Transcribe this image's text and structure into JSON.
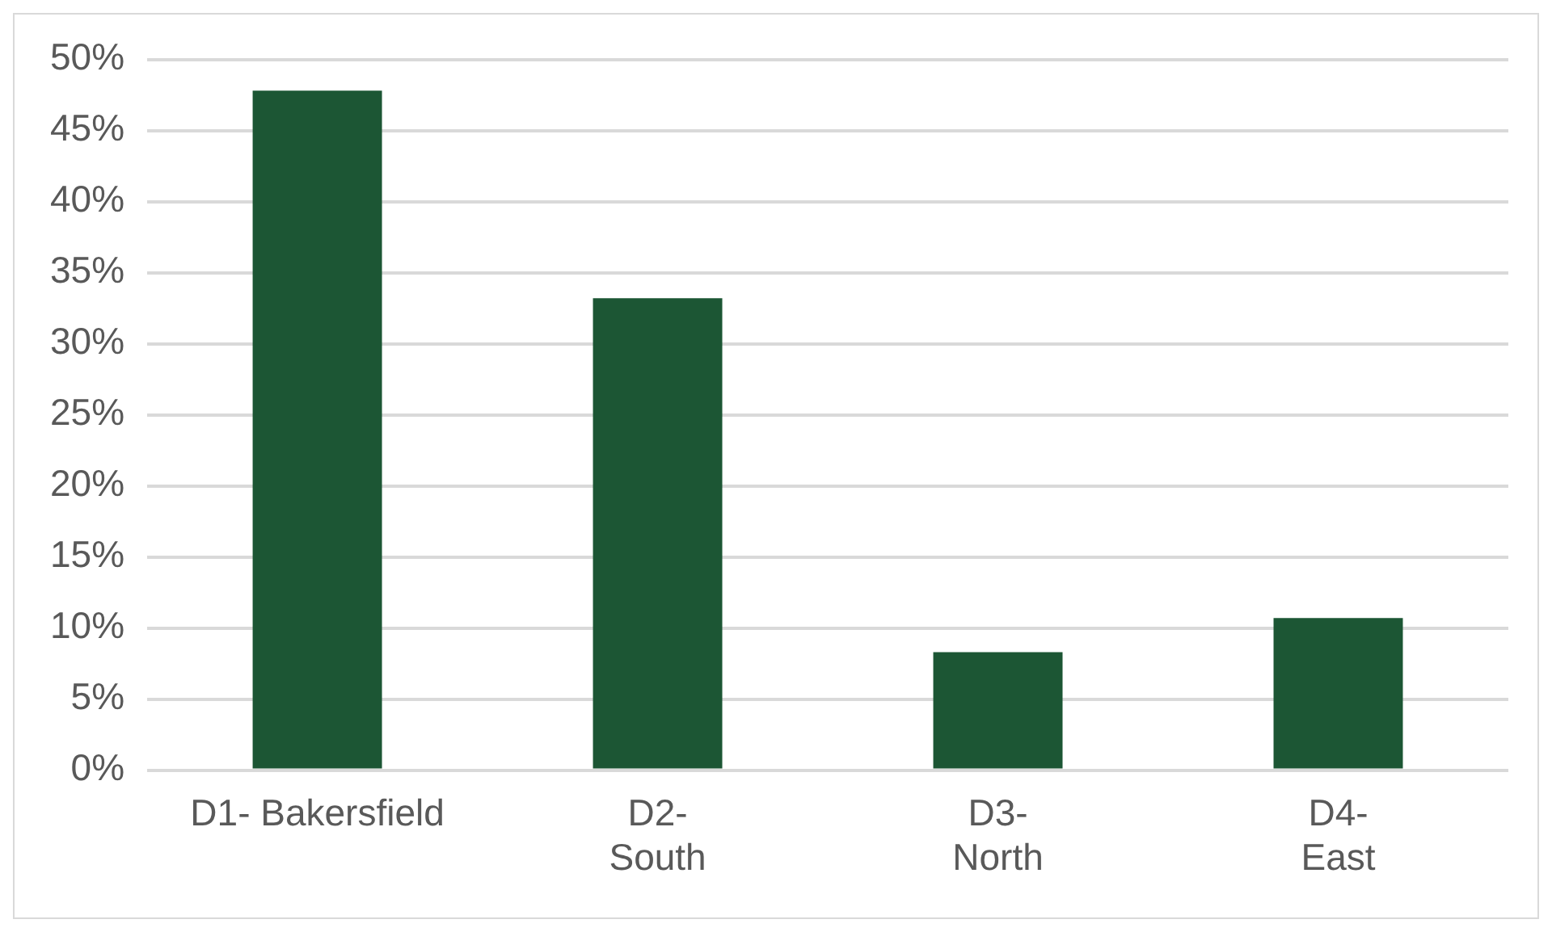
{
  "chart_data": {
    "type": "bar",
    "categories": [
      "D1- Bakersfield",
      "D2-\nSouth",
      "D3-\nNorth",
      "D4-\nEast"
    ],
    "values": [
      47.8,
      33.2,
      8.3,
      10.7
    ],
    "color": "#1c5634",
    "ylim": [
      0,
      50
    ],
    "yticks": [
      {
        "value": 0,
        "label": "0%"
      },
      {
        "value": 5,
        "label": "5%"
      },
      {
        "value": 10,
        "label": "10%"
      },
      {
        "value": 15,
        "label": "15%"
      },
      {
        "value": 20,
        "label": "20%"
      },
      {
        "value": 25,
        "label": "25%"
      },
      {
        "value": 30,
        "label": "30%"
      },
      {
        "value": 35,
        "label": "35%"
      },
      {
        "value": 40,
        "label": "40%"
      },
      {
        "value": 45,
        "label": "45%"
      },
      {
        "value": 50,
        "label": "50%"
      }
    ],
    "grid": "y",
    "legend": false
  }
}
